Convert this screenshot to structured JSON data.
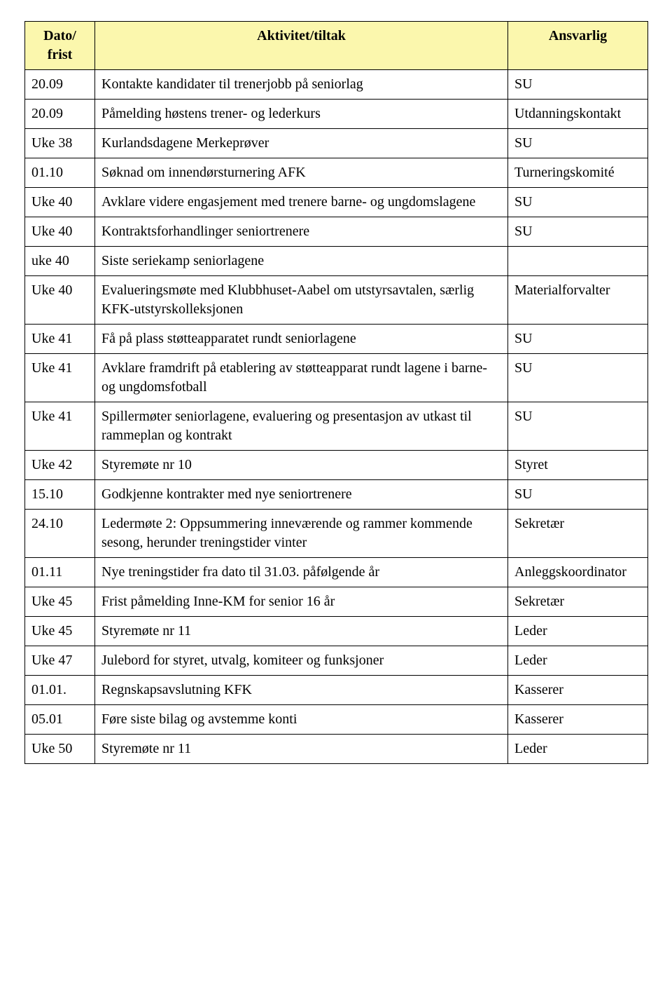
{
  "header_bg": "#fbf7ad",
  "columns": [
    "Dato/\nfrist",
    "Aktivitet/tiltak",
    "Ansvarlig"
  ],
  "rows": [
    [
      "20.09",
      "Kontakte kandidater til trenerjobb på seniorlag",
      "SU"
    ],
    [
      "20.09",
      "Påmelding høstens trener- og lederkurs",
      "Utdanningskontakt"
    ],
    [
      "Uke 38",
      "Kurlandsdagene Merkeprøver",
      "SU"
    ],
    [
      "01.10",
      "Søknad om innendørsturnering AFK",
      "Turneringskomité"
    ],
    [
      "Uke 40",
      "Avklare videre engasjement med trenere barne- og ungdomslagene",
      "SU"
    ],
    [
      "Uke 40",
      "Kontraktsforhandlinger seniortrenere",
      "SU"
    ],
    [
      "uke 40",
      "Siste seriekamp seniorlagene",
      ""
    ],
    [
      "Uke 40",
      "Evalueringsmøte med Klubbhuset-Aabel om utstyrsavtalen, særlig KFK-utstyrskolleksjonen",
      "Materialforvalter"
    ],
    [
      "Uke 41",
      "Få på plass støtteapparatet rundt seniorlagene",
      "SU"
    ],
    [
      "Uke 41",
      "Avklare framdrift på etablering av støtteapparat rundt lagene i barne- og ungdomsfotball",
      "SU"
    ],
    [
      "Uke 41",
      "Spillermøter seniorlagene, evaluering og presentasjon av utkast til rammeplan og kontrakt",
      "SU"
    ],
    [
      "Uke 42",
      "Styremøte nr 10",
      "Styret"
    ],
    [
      "15.10",
      "Godkjenne kontrakter med nye seniortrenere",
      "SU"
    ],
    [
      "24.10",
      "Ledermøte 2: Oppsummering inneværende og rammer kommende sesong, herunder treningstider vinter",
      "Sekretær"
    ],
    [
      "01.11",
      "Nye treningstider fra dato til 31.03. påfølgende år",
      "Anleggskoordinator"
    ],
    [
      "Uke 45",
      "Frist påmelding Inne-KM for senior 16 år",
      "Sekretær"
    ],
    [
      "Uke 45",
      "Styremøte nr 11",
      "Leder"
    ],
    [
      "Uke 47",
      "Julebord for styret, utvalg, komiteer og funksjoner",
      "Leder"
    ],
    [
      "01.01.",
      "Regnskapsavslutning KFK",
      "Kasserer"
    ],
    [
      "05.01",
      "Føre siste bilag og avstemme konti",
      "Kasserer"
    ],
    [
      "Uke 50",
      "Styremøte nr 11",
      "Leder"
    ]
  ]
}
